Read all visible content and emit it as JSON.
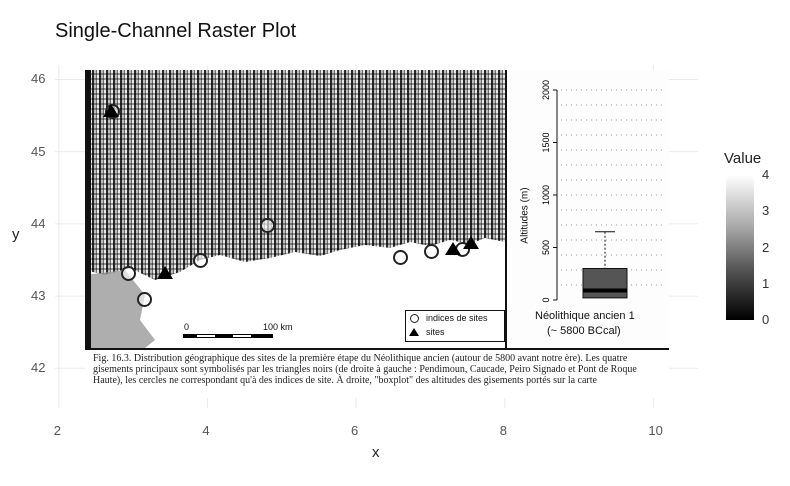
{
  "chart_data": {
    "type": "heatmap",
    "title": "Single-Channel Raster Plot",
    "xlabel": "x",
    "ylabel": "y",
    "xlim": [
      1.95,
      10.6
    ],
    "ylim": [
      41.45,
      46.2
    ],
    "x_ticks": [
      "2",
      "4",
      "6",
      "8",
      "10"
    ],
    "y_ticks": [
      "42",
      "43",
      "44",
      "45",
      "46"
    ],
    "x_tick_values": [
      2,
      4,
      6,
      8,
      10
    ],
    "y_tick_values": [
      42,
      43,
      44,
      45,
      46
    ],
    "grid": true,
    "legend": {
      "title": "Value",
      "position": "right",
      "labels": [
        "0",
        "1",
        "2",
        "3",
        "4"
      ],
      "values": [
        0,
        1,
        2,
        3,
        4
      ],
      "colors": [
        "#000000",
        "#ffffff"
      ]
    }
  },
  "raster_text": {
    "scale_start": "0",
    "scale_end": "100 km",
    "legend_circle": "indices de sites",
    "legend_triangle": "sites",
    "inset_ylabel": "Altitudes (m)",
    "inset_ticks": [
      "0",
      "500",
      "1000",
      "1500",
      "2000"
    ],
    "inset_caption_1": "Néolithique ancien 1",
    "inset_caption_2": "(~ 5800 BCcal)",
    "figure_caption": "Fig. 16.3. Distribution géographique des sites de la première étape du Néolithique ancien (autour de 5800 avant notre ère). Les quatre gisements principaux sont symbolisés par les triangles noirs (de droite à gauche : Pendimoun, Caucade, Peiro Signado et Pont de Roque Haute), les cercles ne correspondant qu'à des indices de site. À droite, \"boxplot\" des altitudes des gisements portés sur la carte"
  }
}
